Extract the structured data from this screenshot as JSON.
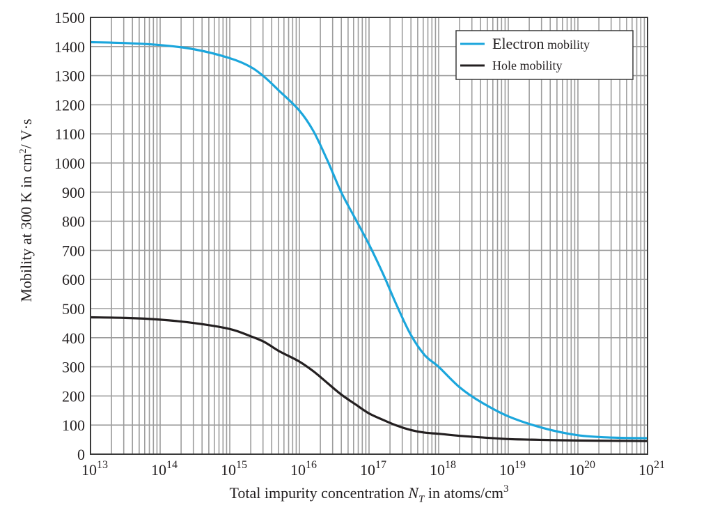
{
  "chart_data": {
    "type": "line",
    "title": "",
    "xlabel": "Total impurity concentration N_T in atoms/cm^3",
    "xlabel_parts": {
      "prefix": "Total impurity concentration ",
      "var": "N",
      "sub": "T",
      "middle": " in atoms/cm",
      "sup": "3"
    },
    "ylabel": "Mobility at 300 K in cm^2/ V·s",
    "ylabel_parts": {
      "prefix": "Mobility at 300 K in cm",
      "sup": "2",
      "suffix": "/ V·s"
    },
    "x_scale": "log",
    "xlim": [
      10000000000000.0,
      1e+21
    ],
    "ylim": [
      0,
      1500
    ],
    "x_ticks": [
      {
        "base": "10",
        "exp": "13"
      },
      {
        "base": "10",
        "exp": "14"
      },
      {
        "base": "10",
        "exp": "15"
      },
      {
        "base": "10",
        "exp": "16"
      },
      {
        "base": "10",
        "exp": "17"
      },
      {
        "base": "10",
        "exp": "18"
      },
      {
        "base": "10",
        "exp": "19"
      },
      {
        "base": "10",
        "exp": "20"
      },
      {
        "base": "10",
        "exp": "21"
      }
    ],
    "y_ticks": [
      "0",
      "100",
      "200",
      "300",
      "400",
      "500",
      "600",
      "700",
      "800",
      "900",
      "1000",
      "1100",
      "1200",
      "1300",
      "1400",
      "1500"
    ],
    "grid": true,
    "legend_position": "upper right",
    "x_log10": [
      13,
      13.5,
      14,
      14.5,
      15,
      15.3,
      15.5,
      15.7,
      16,
      16.2,
      16.4,
      16.6,
      16.8,
      17,
      17.2,
      17.4,
      17.6,
      17.8,
      18,
      18.3,
      18.6,
      19,
      19.5,
      20,
      20.5,
      21
    ],
    "series": [
      {
        "name": "Electron mobility",
        "color": "#1ba6dc",
        "values": [
          1415,
          1412,
          1405,
          1390,
          1360,
          1330,
          1295,
          1250,
          1180,
          1110,
          1010,
          900,
          810,
          720,
          620,
          510,
          410,
          340,
          300,
          230,
          180,
          130,
          90,
          65,
          57,
          55
        ]
      },
      {
        "name": "Hole mobility",
        "color": "#231f20",
        "values": [
          470,
          468,
          462,
          450,
          430,
          405,
          385,
          355,
          318,
          285,
          245,
          205,
          172,
          140,
          118,
          98,
          83,
          74,
          70,
          63,
          58,
          52,
          49,
          47,
          46,
          45
        ]
      }
    ]
  },
  "legend": {
    "items": [
      {
        "label_main": "Electron",
        "label_rest": " mobility",
        "color": "#1ba6dc"
      },
      {
        "label_main": "Hole mobility",
        "label_rest": "",
        "color": "#231f20"
      }
    ]
  },
  "colors": {
    "grid": "#9d9d9d",
    "axis": "#3a3a3a",
    "electron": "#1ba6dc",
    "hole": "#231f20"
  }
}
